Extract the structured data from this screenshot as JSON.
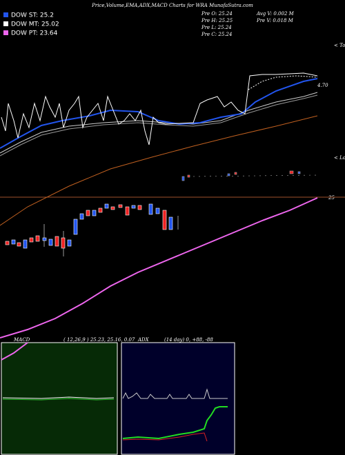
{
  "header": {
    "title": "Price,Volume,EMA,ADX,MACD Charts for WRA MunafaSutra.com"
  },
  "legend": [
    {
      "label": "DOW ST: 25.2"
    },
    {
      "label": "DOW MT: 25.02"
    },
    {
      "label": "DOW PT: 23.64"
    }
  ],
  "info": {
    "pre_o": "Pre  O: 25.24",
    "pre_h": "Pre  H: 25.25",
    "pre_l": "Pre  L: 25.24",
    "pre_c": "Pre  C: 25.24",
    "avg_v": "Avg  V: 0.002  M",
    "pre_v": "Pre   V: 0.018  M"
  },
  "labels": {
    "tops": "< Tops",
    "lows": "< Lows",
    "level": "4.70",
    "price": "25"
  },
  "macd": {
    "name": "MACD",
    "params": "( 12,26,9 ) 25.23,  25.16,  0.07"
  },
  "adx": {
    "name": "ADX",
    "params": "(14  day) 0,  +88,  -88"
  }
}
